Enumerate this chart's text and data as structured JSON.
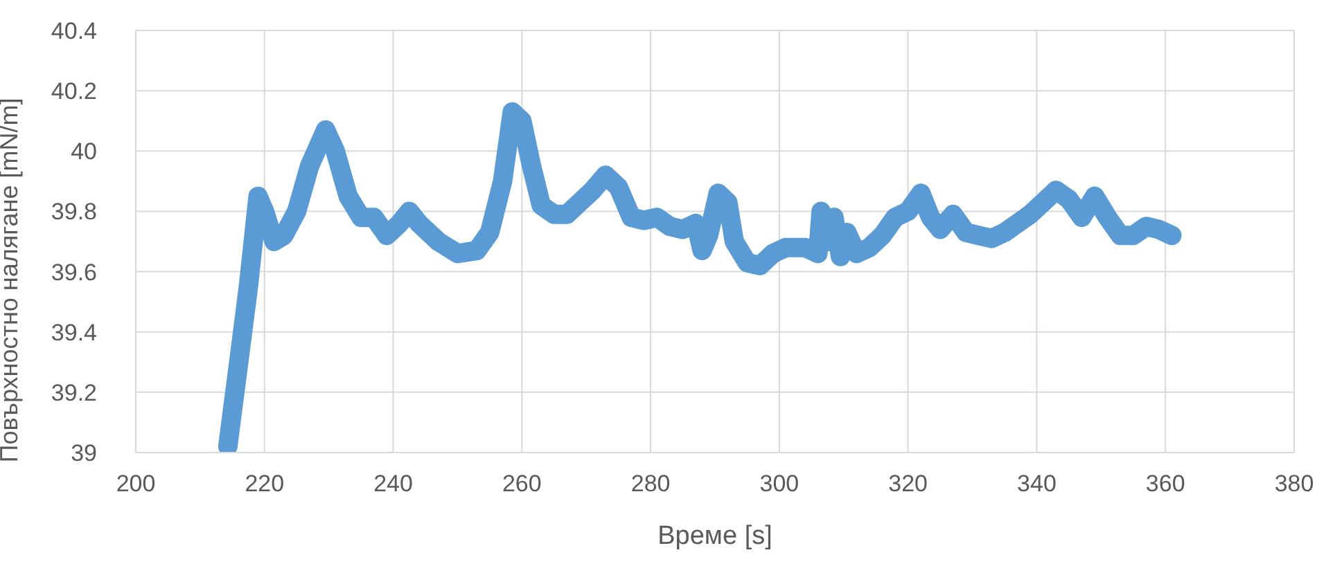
{
  "chart_data": {
    "type": "line",
    "xlabel": "Време [s]",
    "ylabel": "Повърхностно налягане [mN/m]",
    "xlim": [
      200,
      380
    ],
    "xticks": [
      200,
      220,
      240,
      260,
      280,
      300,
      320,
      340,
      360,
      380
    ],
    "ylim": [
      39,
      40.4
    ],
    "yticks": [
      39,
      39.2,
      39.4,
      39.6,
      39.8,
      40,
      40.2,
      40.4
    ],
    "grid": true,
    "legend": false,
    "marker": "none",
    "line_style": "solid",
    "series": [
      {
        "color": "#5b9bd5",
        "x": [
          214.3,
          216,
          217.5,
          219,
          220,
          221.5,
          223,
          225,
          227,
          229.5,
          231,
          233,
          235,
          237,
          239,
          241,
          242.5,
          244,
          247,
          250,
          253,
          255,
          257,
          258.5,
          260,
          261.5,
          263,
          265,
          267,
          269,
          271,
          273,
          275,
          277,
          279,
          281,
          283,
          285,
          287,
          288,
          289,
          290.5,
          292,
          293,
          295,
          297,
          299,
          301,
          304,
          306,
          306.5,
          307.5,
          308.5,
          309.5,
          310.5,
          312,
          314,
          316,
          318,
          320,
          322,
          323.5,
          325,
          327,
          329,
          331,
          333,
          335,
          337,
          339,
          341,
          343,
          345,
          347,
          349,
          351,
          353,
          355,
          357,
          359,
          361
        ],
        "values": [
          39.02,
          39.3,
          39.55,
          39.85,
          39.8,
          39.7,
          39.72,
          39.8,
          39.95,
          40.07,
          40,
          39.85,
          39.78,
          39.78,
          39.72,
          39.76,
          39.8,
          39.76,
          39.7,
          39.66,
          39.67,
          39.73,
          39.9,
          40.13,
          40.1,
          39.95,
          39.82,
          39.79,
          39.79,
          39.83,
          39.87,
          39.92,
          39.88,
          39.78,
          39.77,
          39.78,
          39.75,
          39.74,
          39.76,
          39.67,
          39.72,
          39.86,
          39.83,
          39.7,
          39.63,
          39.62,
          39.66,
          39.68,
          39.68,
          39.66,
          39.8,
          39.7,
          39.78,
          39.65,
          39.73,
          39.66,
          39.68,
          39.72,
          39.78,
          39.8,
          39.86,
          39.78,
          39.74,
          39.79,
          39.73,
          39.72,
          39.71,
          39.73,
          39.76,
          39.79,
          39.83,
          39.87,
          39.84,
          39.78,
          39.85,
          39.78,
          39.72,
          39.72,
          39.75,
          39.74,
          39.72
        ]
      }
    ]
  }
}
